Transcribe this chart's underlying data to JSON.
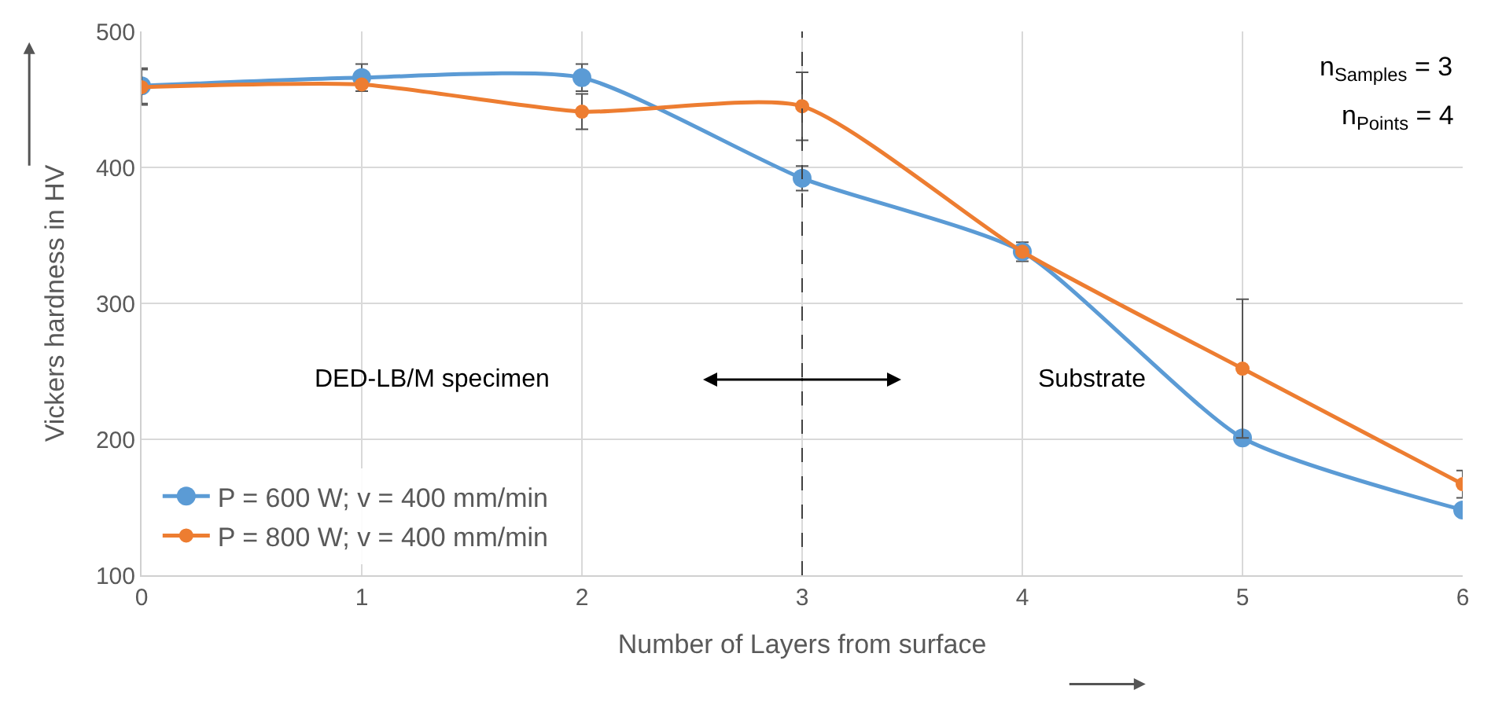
{
  "chart_data": {
    "type": "line",
    "xlabel": "Number of Layers from surface",
    "ylabel": "Vickers hardness in HV",
    "x": [
      0,
      1,
      2,
      3,
      4,
      5,
      6
    ],
    "series": [
      {
        "name": "P = 600 W; v = 400 mm/min",
        "color": "#5b9bd5",
        "values": [
          460,
          466,
          466,
          392,
          338,
          201,
          148
        ],
        "errors": [
          13,
          10,
          10,
          9,
          7,
          null,
          null
        ]
      },
      {
        "name": "P = 800 W; v = 400 mm/min",
        "color": "#ed7d31",
        "values": [
          459,
          461,
          441,
          445,
          338,
          252,
          167
        ],
        "errors": [
          13,
          null,
          13,
          25,
          null,
          51,
          10
        ]
      }
    ],
    "xlim": [
      0,
      6
    ],
    "xticks": [
      0,
      1,
      2,
      3,
      4,
      5,
      6
    ],
    "ylim": [
      100,
      500
    ],
    "yticks": [
      100,
      200,
      300,
      400,
      500
    ],
    "ref_lines": [
      {
        "axis": "x",
        "value": 3,
        "color": "#404040",
        "line_style": "dashed"
      }
    ],
    "annotations": [
      "DED-LB/M specimen",
      "Substrate",
      "n$_{Samples}$ = 3",
      "n$_{Points}$ = 4"
    ],
    "grid": true,
    "legend": "bottom left",
    "marker": "circle",
    "line_style": "solid"
  }
}
